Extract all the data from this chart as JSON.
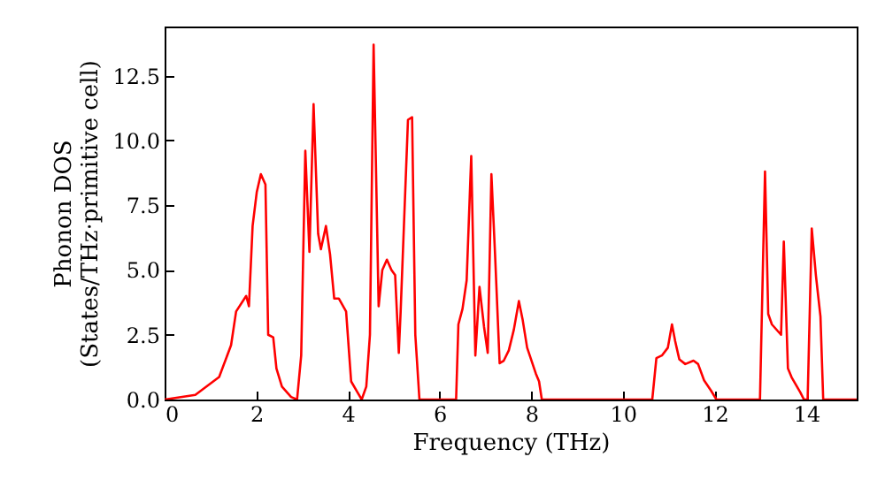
{
  "chart_data": {
    "type": "line",
    "xlabel": "Frequency (THz)",
    "ylabel": "Phonon DOS\n(States/THz·primitive cell)",
    "xlim": [
      0,
      15.1
    ],
    "ylim": [
      0,
      14.4
    ],
    "xticks": [
      0,
      2,
      4,
      6,
      8,
      10,
      12,
      14
    ],
    "yticks": [
      {
        "value": 0,
        "label": "0.0"
      },
      {
        "value": 2.5,
        "label": "2.5"
      },
      {
        "value": 5,
        "label": "5.0"
      },
      {
        "value": 7.5,
        "label": "7.5"
      },
      {
        "value": 10,
        "label": "10.0"
      },
      {
        "value": 12.5,
        "label": "12.5"
      }
    ],
    "marker": "none",
    "line_style": "solid",
    "series": [
      {
        "color": "#ff0000",
        "x": [
          0,
          0.67,
          1.19,
          1.45,
          1.56,
          1.78,
          1.84,
          1.92,
          2.01,
          2.1,
          2.2,
          2.26,
          2.37,
          2.44,
          2.56,
          2.76,
          2.89,
          2.98,
          3.07,
          3.16,
          3.25,
          3.35,
          3.41,
          3.52,
          3.61,
          3.7,
          3.8,
          3.96,
          4.07,
          4.2,
          4.3,
          4.4,
          4.48,
          4.56,
          4.67,
          4.75,
          4.85,
          4.95,
          5.03,
          5.11,
          5.15,
          5.31,
          5.4,
          5.47,
          5.56,
          6.36,
          6.41,
          6.5,
          6.59,
          6.69,
          6.78,
          6.87,
          6.97,
          7.05,
          7.13,
          7.21,
          7.31,
          7.4,
          7.51,
          7.62,
          7.73,
          7.81,
          7.91,
          8.1,
          8.17,
          8.23,
          10.64,
          10.73,
          10.85,
          10.98,
          11.07,
          11.14,
          11.23,
          11.36,
          11.54,
          11.64,
          11.77,
          11.92,
          12.04,
          12.99,
          13.1,
          13.17,
          13.25,
          13.45,
          13.51,
          13.6,
          13.68,
          13.87,
          13.95,
          14.03,
          14.12,
          14.21,
          14.31,
          14.37,
          15.1
        ],
        "values": [
          0,
          0.18,
          0.87,
          2.1,
          3.4,
          4.0,
          3.6,
          6.7,
          8.0,
          8.7,
          8.3,
          2.5,
          2.4,
          1.2,
          0.5,
          0.1,
          0,
          1.7,
          9.6,
          5.7,
          11.4,
          6.4,
          5.8,
          6.7,
          5.6,
          3.9,
          3.9,
          3.4,
          0.7,
          0.3,
          0,
          0.5,
          2.5,
          13.7,
          3.6,
          5.0,
          5.4,
          5.0,
          4.8,
          1.8,
          3.4,
          10.8,
          10.9,
          2.5,
          0,
          0,
          2.9,
          3.5,
          4.6,
          9.4,
          1.7,
          4.35,
          2.8,
          1.8,
          8.7,
          5.6,
          1.4,
          1.5,
          1.9,
          2.7,
          3.8,
          3.1,
          2.0,
          1.0,
          0.7,
          0,
          0,
          1.6,
          1.7,
          2.0,
          2.9,
          2.25,
          1.55,
          1.37,
          1.5,
          1.37,
          0.74,
          0.35,
          0,
          0,
          8.8,
          3.3,
          2.9,
          2.5,
          6.1,
          1.2,
          0.86,
          0.28,
          0,
          0,
          6.6,
          4.8,
          3.2,
          0,
          0
        ]
      }
    ]
  }
}
